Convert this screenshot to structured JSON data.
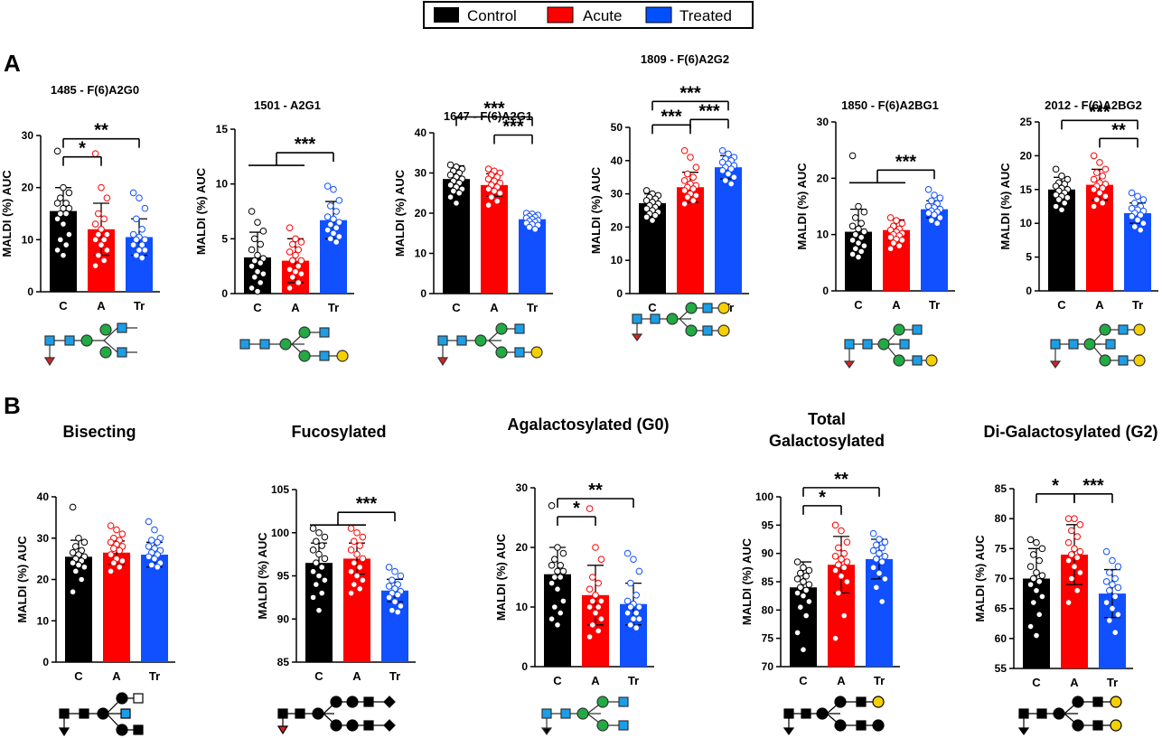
{
  "legend": [
    {
      "label": "Control",
      "color": "#000000"
    },
    {
      "label": "Acute",
      "color": "#ff0000"
    },
    {
      "label": "Treated",
      "color": "#0050ff"
    }
  ],
  "panel_labels": {
    "a": "A",
    "b": "B"
  },
  "colors": {
    "control": "#000000",
    "acute": "#ff0000",
    "treated": "#1150ff",
    "gal": "#f5d000",
    "man": "#22aa44",
    "glcnac": "#1b9ee8",
    "fuc": "#e02020"
  },
  "chart_data": [
    {
      "type": "bar",
      "title": "1485 - F(6)A2G0",
      "ylabel": "MALDI (%) AUC",
      "categories": [
        "C",
        "A",
        "Tr"
      ],
      "values": [
        15.5,
        12,
        10.5
      ],
      "errors": [
        4.5,
        5,
        3.5
      ],
      "ylim": [
        0,
        30
      ],
      "yticks": [
        0,
        10,
        20,
        30
      ],
      "points": [
        [
          27,
          20,
          19,
          18,
          17,
          17,
          16,
          16,
          15,
          15,
          14,
          13,
          11,
          10,
          9,
          8,
          7
        ],
        [
          26.5,
          20,
          18,
          15,
          14,
          13,
          12,
          11,
          11,
          10,
          10,
          9,
          8,
          7,
          6,
          5
        ],
        [
          19,
          18,
          16,
          14,
          12,
          11,
          10.5,
          10,
          10,
          9,
          9,
          8,
          8,
          7,
          6.5
        ]
      ],
      "significance": [
        {
          "label": "*",
          "from": 0,
          "to": 1,
          "level": 1
        },
        {
          "label": "**",
          "from": 0,
          "to": 2,
          "level": 2
        }
      ]
    },
    {
      "type": "bar",
      "title": "1501 - A2G1",
      "ylabel": "MALDI (%) AUC",
      "categories": [
        "C",
        "A",
        "Tr"
      ],
      "values": [
        3.3,
        3,
        6.7
      ],
      "errors": [
        2.3,
        2,
        1.7
      ],
      "ylim": [
        0,
        15
      ],
      "yticks": [
        0,
        5,
        10,
        15
      ],
      "points": [
        [
          7.5,
          6.5,
          5.7,
          5,
          4.5,
          4,
          3.5,
          3.2,
          3,
          2.8,
          2.5,
          2,
          1.8,
          1.5,
          1,
          0.5,
          0.2
        ],
        [
          6,
          5,
          4.7,
          4.5,
          4,
          3.8,
          3.5,
          3,
          3,
          2.5,
          2.2,
          2,
          1.8,
          1.5,
          1,
          0.5
        ],
        [
          9.8,
          9.5,
          8.5,
          8,
          7.5,
          7,
          6.8,
          6.5,
          6.3,
          6,
          5.8,
          5.5,
          5.2,
          5,
          4.7
        ]
      ],
      "significance": [
        {
          "label": "***",
          "from": [
            0,
            1
          ],
          "to": 2,
          "level": 2
        }
      ]
    },
    {
      "type": "bar",
      "title": "1647 - F(6)A2G1",
      "ylabel": "MALDI (%) AUC",
      "categories": [
        "C",
        "A",
        "Tr"
      ],
      "values": [
        28.5,
        27,
        18.5
      ],
      "errors": [
        3.3,
        2.8,
        1.5
      ],
      "ylim": [
        0,
        40
      ],
      "yticks": [
        0,
        10,
        20,
        30,
        40
      ],
      "points": [
        [
          32,
          31.5,
          31,
          30.5,
          30,
          29.5,
          29,
          28.5,
          28,
          27.5,
          27,
          26.5,
          26,
          25.5,
          25,
          24,
          22.5
        ],
        [
          31,
          30.5,
          30,
          29.5,
          29,
          28.5,
          28,
          27.5,
          27,
          26.5,
          26,
          25.5,
          25,
          24,
          23,
          22
        ],
        [
          20,
          19.8,
          19.5,
          19.2,
          19,
          18.8,
          18.5,
          18.2,
          18,
          17.8,
          17.5,
          17.2,
          17,
          16.5,
          16
        ]
      ],
      "significance": [
        {
          "label": "***",
          "from": 1,
          "to": 2,
          "level": 1
        },
        {
          "label": "***",
          "from": 0,
          "to": 2,
          "level": 2
        }
      ]
    },
    {
      "type": "bar",
      "title": "1809 - F(6)A2G2",
      "ylabel": "MALDI (%) AUC",
      "categories": [
        "C",
        "A",
        "Tr"
      ],
      "values": [
        27.2,
        32,
        38
      ],
      "errors": [
        2.8,
        4.5,
        3.5
      ],
      "ylim": [
        0,
        50
      ],
      "yticks": [
        0,
        10,
        20,
        30,
        40,
        50
      ],
      "points": [
        [
          31,
          30,
          29.5,
          29,
          28.5,
          28,
          27.5,
          27,
          26.5,
          26,
          25.5,
          25,
          24.5,
          24,
          23.5,
          23,
          22
        ],
        [
          43,
          41,
          38,
          36,
          35,
          34,
          33,
          32.5,
          32,
          31.5,
          31,
          30,
          29.5,
          29,
          28,
          27
        ],
        [
          43,
          42,
          41,
          40.5,
          40,
          39.5,
          39,
          38.5,
          38,
          37.5,
          37,
          36,
          35,
          34,
          33
        ]
      ],
      "significance": [
        {
          "label": "***",
          "from": 0,
          "to": 1,
          "level": 1
        },
        {
          "label": "***",
          "from": 1,
          "to": 2,
          "level": 1.3
        },
        {
          "label": "***",
          "from": 0,
          "to": 2,
          "level": 2.3
        }
      ]
    },
    {
      "type": "bar",
      "title": "1850 - F(6)A2BG1",
      "ylabel": "MALDI (%) AUC",
      "categories": [
        "C",
        "A",
        "Tr"
      ],
      "values": [
        10.5,
        10.8,
        14.5
      ],
      "errors": [
        4,
        1.8,
        1.5
      ],
      "ylim": [
        0,
        30
      ],
      "yticks": [
        0,
        10,
        20,
        30
      ],
      "points": [
        [
          24,
          15,
          14,
          13,
          12,
          11.5,
          11,
          10.5,
          10,
          9.5,
          9,
          8.5,
          8,
          7.5,
          7,
          6.5,
          6
        ],
        [
          13,
          12.5,
          12,
          11.5,
          11,
          10.8,
          10.5,
          10.2,
          10,
          9.8,
          9.5,
          9.2,
          9,
          8.5,
          8,
          7.5
        ],
        [
          18,
          17,
          16.5,
          16,
          15.5,
          15,
          14.8,
          14.5,
          14.2,
          14,
          13.8,
          13.5,
          13,
          12.5,
          12
        ]
      ],
      "significance": [
        {
          "label": "***",
          "from": [
            0,
            1
          ],
          "to": 2,
          "level": 1
        }
      ]
    },
    {
      "type": "bar",
      "title": "2012 - F(6)A2BG2",
      "ylabel": "MALDI (%) AUC",
      "categories": [
        "C",
        "A",
        "Tr"
      ],
      "values": [
        15,
        15.7,
        11.5
      ],
      "errors": [
        1.8,
        2.3,
        1.5
      ],
      "ylim": [
        0,
        25
      ],
      "yticks": [
        0,
        5,
        10,
        15,
        20,
        25
      ],
      "points": [
        [
          18,
          17,
          16.5,
          16,
          15.8,
          15.5,
          15.2,
          15,
          14.8,
          14.5,
          14.2,
          14,
          13.8,
          13.5,
          13,
          12.5,
          12
        ],
        [
          20,
          19,
          18,
          17.5,
          17,
          16.5,
          16,
          15.8,
          15.5,
          15.2,
          15,
          14.5,
          14,
          13.5,
          13,
          12.5
        ],
        [
          14.5,
          14,
          13.5,
          13,
          12.5,
          12.2,
          12,
          11.8,
          11.5,
          11.2,
          11,
          10.5,
          10,
          9.5,
          9
        ]
      ],
      "significance": [
        {
          "label": "**",
          "from": 1,
          "to": 2,
          "level": 1
        },
        {
          "label": "***",
          "from": 0,
          "to": 2,
          "level": 2
        }
      ]
    },
    {
      "type": "bar",
      "title": "Bisecting",
      "ylabel": "MALDI (%) AUC",
      "categories": [
        "C",
        "A",
        "Tr"
      ],
      "values": [
        25.5,
        26.5,
        26
      ],
      "errors": [
        4,
        2.8,
        3
      ],
      "ylim": [
        0,
        40
      ],
      "yticks": [
        0,
        10,
        20,
        30,
        40
      ],
      "points": [
        [
          37.5,
          30,
          29,
          28,
          27,
          26.5,
          26,
          25.5,
          25,
          24.5,
          24,
          23.5,
          23,
          22,
          20,
          17
        ],
        [
          33,
          32,
          31,
          30,
          29.5,
          29,
          28.5,
          28,
          27.5,
          27,
          26,
          25,
          24.5,
          24,
          23,
          22
        ],
        [
          34,
          32,
          30,
          29.5,
          29,
          28,
          27.5,
          27,
          26.5,
          26,
          25.5,
          25,
          24,
          23.5,
          23
        ]
      ],
      "significance": []
    },
    {
      "type": "bar",
      "title": "Fucosylated",
      "ylabel": "MALDI (%) AUC",
      "categories": [
        "C",
        "A",
        "Tr"
      ],
      "values": [
        96.5,
        97,
        93.3
      ],
      "errors": [
        2.3,
        1.8,
        1.3
      ],
      "ylim": [
        85,
        105
      ],
      "yticks": [
        85,
        90,
        95,
        100,
        105
      ],
      "points": [
        [
          100.5,
          100,
          99.5,
          99,
          98.5,
          98,
          97.5,
          97,
          96.5,
          96,
          95.5,
          95,
          94.5,
          94,
          93,
          92.5,
          91
        ],
        [
          100.5,
          100,
          99.5,
          99,
          98.5,
          98,
          97.5,
          97,
          96.5,
          96,
          95.5,
          95,
          94.5,
          94,
          93.5,
          93
        ],
        [
          96,
          95.5,
          95,
          94.5,
          94,
          93.8,
          93.5,
          93.2,
          93,
          92.8,
          92.5,
          92,
          91.5,
          91,
          90.8
        ]
      ],
      "significance": [
        {
          "label": "***",
          "from": [
            0,
            1
          ],
          "to": 2,
          "level": 1
        }
      ]
    },
    {
      "type": "bar",
      "title": "Agalactosylated (G0)",
      "ylabel": "MALDI (%) AUC",
      "categories": [
        "C",
        "A",
        "Tr"
      ],
      "values": [
        15.5,
        12,
        10.5
      ],
      "errors": [
        4.5,
        5,
        3.5
      ],
      "ylim": [
        0,
        30
      ],
      "yticks": [
        0,
        10,
        20,
        30
      ],
      "points": [
        [
          27,
          20,
          19,
          18,
          17,
          17,
          16,
          16,
          15,
          15,
          14,
          13,
          11,
          10,
          9,
          8,
          7
        ],
        [
          26.5,
          20,
          18,
          15,
          14,
          13,
          12,
          11,
          11,
          10,
          10,
          9,
          8,
          7,
          6,
          5
        ],
        [
          19,
          18,
          16,
          14,
          12,
          11,
          10.5,
          10,
          10,
          9,
          9,
          8,
          8,
          7,
          6.5
        ]
      ],
      "significance": [
        {
          "label": "*",
          "from": 0,
          "to": 1,
          "level": 1
        },
        {
          "label": "**",
          "from": 0,
          "to": 2,
          "level": 2
        }
      ]
    },
    {
      "type": "bar",
      "title": "Total Galactosylated",
      "title_lines": [
        "Total",
        "Galactosylated"
      ],
      "ylabel": "MALDI (%) AUC",
      "categories": [
        "C",
        "A",
        "Tr"
      ],
      "values": [
        84,
        88,
        89
      ],
      "errors": [
        4.5,
        5,
        3.5
      ],
      "ylim": [
        70,
        100
      ],
      "yticks": [
        70,
        75,
        80,
        85,
        90,
        95,
        100
      ],
      "points": [
        [
          88.5,
          87.5,
          87,
          86.5,
          86,
          85.5,
          85,
          84.5,
          84,
          83.5,
          83,
          82.5,
          81.5,
          80.5,
          79,
          76,
          73
        ],
        [
          95,
          94,
          92,
          91,
          90,
          89.5,
          89,
          88.5,
          88,
          87.5,
          87,
          86,
          85,
          83,
          79,
          75
        ],
        [
          93.5,
          92.5,
          92,
          91.5,
          91,
          90.5,
          90,
          89.5,
          89,
          88.5,
          87.5,
          86.5,
          85.5,
          84,
          81.5
        ]
      ],
      "significance": [
        {
          "label": "*",
          "from": 0,
          "to": 1,
          "level": 1
        },
        {
          "label": "**",
          "from": 0,
          "to": 2,
          "level": 2
        }
      ]
    },
    {
      "type": "bar",
      "title": "Di-Galactosylated (G2)",
      "ylabel": "MALDI (%) AUC",
      "categories": [
        "C",
        "A",
        "Tr"
      ],
      "values": [
        70,
        74,
        67.5
      ],
      "errors": [
        5,
        5,
        4
      ],
      "ylim": [
        55,
        85
      ],
      "yticks": [
        55,
        60,
        65,
        70,
        75,
        80,
        85
      ],
      "points": [
        [
          76.5,
          76,
          75,
          74,
          73,
          72,
          71,
          70.5,
          70,
          69.5,
          69,
          68,
          67,
          66,
          64,
          62,
          60.5
        ],
        [
          80,
          80,
          79,
          78,
          77,
          76,
          75,
          74.5,
          74,
          73.5,
          73,
          72,
          71,
          70,
          68,
          66
        ],
        [
          74.5,
          73,
          72,
          71,
          70,
          69.5,
          69,
          68.5,
          68,
          67,
          66,
          65,
          64,
          63,
          61
        ]
      ],
      "significance": [
        {
          "label": "*",
          "from": 0,
          "to": 1,
          "level": 1
        },
        {
          "label": "***",
          "from": 1,
          "to": 2,
          "level": 1
        }
      ]
    }
  ]
}
